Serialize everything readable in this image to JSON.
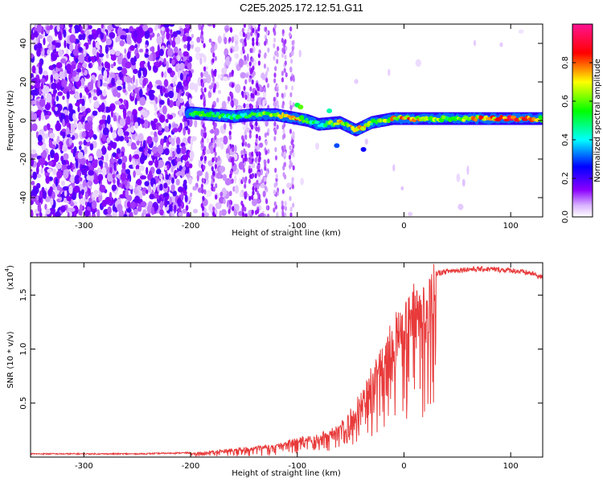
{
  "figure": {
    "title": "C2E5.2025.172.12.51.G11"
  },
  "chart_data": [
    {
      "type": "heatmap",
      "xlabel": "Height of straight line (km)",
      "ylabel": "Frequency (Hz)",
      "xlim": [
        -350,
        130
      ],
      "ylim": [
        -50,
        50
      ],
      "x_ticks": [
        -300,
        -200,
        -100,
        0,
        100
      ],
      "y_ticks": [
        -40,
        -20,
        0,
        20,
        40
      ],
      "colorbar": {
        "label": "Normalized spectral amplitude",
        "ticks": [
          0.0,
          0.2,
          0.4,
          0.6,
          0.8
        ],
        "range": [
          0,
          1
        ]
      },
      "colormap": [
        "#ffffff",
        "#8b00ff",
        "#0000ff",
        "#00ffff",
        "#00ff00",
        "#ffff00",
        "#ff0000",
        "#ff0080"
      ],
      "signal_track": [
        {
          "x": -200,
          "y": 4,
          "amp": 0.55
        },
        {
          "x": -180,
          "y": 3,
          "amp": 0.6
        },
        {
          "x": -160,
          "y": 2,
          "amp": 0.5
        },
        {
          "x": -140,
          "y": 3,
          "amp": 0.55
        },
        {
          "x": -120,
          "y": 3,
          "amp": 0.65
        },
        {
          "x": -100,
          "y": 1,
          "amp": 0.85
        },
        {
          "x": -90,
          "y": 0,
          "amp": 0.6
        },
        {
          "x": -80,
          "y": -2,
          "amp": 0.45
        },
        {
          "x": -60,
          "y": -1,
          "amp": 0.7
        },
        {
          "x": -45,
          "y": -5,
          "amp": 0.8
        },
        {
          "x": -30,
          "y": -1,
          "amp": 0.6
        },
        {
          "x": -10,
          "y": 1,
          "amp": 0.75
        },
        {
          "x": 0,
          "y": 1,
          "amp": 0.8
        },
        {
          "x": 40,
          "y": 1,
          "amp": 0.6
        },
        {
          "x": 80,
          "y": 1,
          "amp": 0.85
        },
        {
          "x": 100,
          "y": 1,
          "amp": 0.9
        },
        {
          "x": 130,
          "y": 1,
          "amp": 0.7
        }
      ]
    },
    {
      "type": "line",
      "xlabel": "Height of straight line (km)",
      "ylabel": "SNR (10 * v/v)",
      "scale_label": "(x10",
      "scale_exp": "4",
      "scale_suffix": ")",
      "xlim": [
        -350,
        130
      ],
      "ylim": [
        0,
        1.8
      ],
      "x_ticks": [
        -300,
        -200,
        -100,
        0,
        100
      ],
      "y_ticks": [
        0.5,
        1.0,
        1.5
      ],
      "y_tick_labels": [
        "0.5",
        "1.0",
        "1.5"
      ],
      "color": "#e83a3a",
      "envelope": {
        "x": [
          -350,
          -250,
          -200,
          -180,
          -160,
          -140,
          -120,
          -100,
          -80,
          -60,
          -50,
          -40,
          -30,
          -20,
          -10,
          0,
          10,
          20,
          30,
          40,
          60,
          80,
          100,
          120,
          130
        ],
        "y": [
          0.03,
          0.03,
          0.04,
          0.06,
          0.08,
          0.1,
          0.12,
          0.18,
          0.2,
          0.3,
          0.45,
          0.6,
          0.85,
          1.05,
          1.25,
          1.4,
          1.55,
          1.65,
          1.7,
          1.72,
          1.74,
          1.74,
          1.73,
          1.7,
          1.66
        ]
      }
    }
  ]
}
